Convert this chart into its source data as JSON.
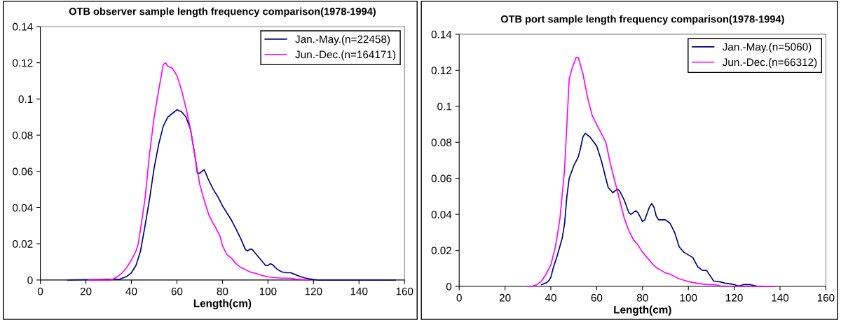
{
  "chart_data": [
    {
      "type": "line",
      "title": "OTB observer sample length frequency comparison(1978-1994)",
      "xlabel": "Length(cm)",
      "xlim": [
        0,
        160
      ],
      "xticks": [
        0,
        20,
        40,
        60,
        80,
        100,
        120,
        140,
        160
      ],
      "ylim": [
        0,
        0.14
      ],
      "yticks": [
        0,
        0.02,
        0.04,
        0.06,
        0.08,
        0.1,
        0.12,
        0.14
      ],
      "grid": false,
      "legend": "top right",
      "marker": "none",
      "line_style": "solid",
      "series": [
        {
          "name": "Jan.-May.(n=22458)",
          "color": "#000080",
          "x": [
            12,
            35,
            38,
            40,
            42,
            44,
            46,
            48,
            50,
            52,
            54,
            56,
            58,
            60,
            62,
            64,
            66,
            68,
            69,
            70,
            72,
            74,
            76,
            78,
            80,
            82,
            84,
            86,
            88,
            90,
            91,
            92,
            93,
            95,
            97,
            99,
            100,
            101,
            102,
            104,
            106,
            108,
            110,
            112,
            114,
            116,
            118,
            120,
            122,
            140,
            156
          ],
          "values": [
            0,
            0.0005,
            0.002,
            0.004,
            0.008,
            0.016,
            0.03,
            0.045,
            0.062,
            0.075,
            0.085,
            0.09,
            0.092,
            0.094,
            0.093,
            0.09,
            0.083,
            0.068,
            0.059,
            0.059,
            0.061,
            0.055,
            0.05,
            0.046,
            0.041,
            0.037,
            0.033,
            0.028,
            0.023,
            0.017,
            0.016,
            0.017,
            0.017,
            0.014,
            0.011,
            0.008,
            0.008,
            0.009,
            0.0085,
            0.006,
            0.0045,
            0.004,
            0.004,
            0.003,
            0.002,
            0.0012,
            0.0007,
            0.0003,
            0,
            0,
            0
          ]
        },
        {
          "name": "Jun.-Dec.(n=164171)",
          "color": "#ff00ff",
          "x": [
            21,
            30,
            32,
            34,
            36,
            38,
            40,
            42,
            43,
            44,
            46,
            48,
            50,
            52,
            54,
            55,
            56,
            58,
            60,
            62,
            64,
            66,
            68,
            70,
            72,
            74,
            76,
            77,
            79,
            80,
            82,
            84,
            86,
            88,
            90,
            92,
            95,
            98,
            100,
            104,
            106,
            110,
            112,
            116,
            118
          ],
          "values": [
            0,
            0,
            0.0005,
            0.002,
            0.004,
            0.007,
            0.011,
            0.016,
            0.02,
            0.028,
            0.045,
            0.07,
            0.09,
            0.105,
            0.119,
            0.12,
            0.118,
            0.117,
            0.113,
            0.105,
            0.095,
            0.083,
            0.068,
            0.053,
            0.044,
            0.036,
            0.031,
            0.029,
            0.024,
            0.019,
            0.014,
            0.012,
            0.009,
            0.007,
            0.0058,
            0.0045,
            0.0035,
            0.0023,
            0.0017,
            0.0012,
            0.001,
            0.001,
            0.0005,
            0.0002,
            0
          ]
        }
      ]
    },
    {
      "type": "line",
      "title": "OTB port sample length frequency comparison(1978-1994)",
      "xlabel": "Length(cm)",
      "xlim": [
        0,
        160
      ],
      "xticks": [
        0,
        20,
        40,
        60,
        80,
        100,
        120,
        140,
        160
      ],
      "ylim": [
        0,
        0.14
      ],
      "yticks": [
        0,
        0.02,
        0.04,
        0.06,
        0.08,
        0.1,
        0.12,
        0.14
      ],
      "grid": false,
      "legend": "top right",
      "marker": "none",
      "line_style": "solid",
      "series": [
        {
          "name": "Jan.-May.(n=5060)",
          "color": "#000080",
          "x": [
            36,
            38,
            39,
            40,
            41,
            43,
            45,
            46,
            47,
            48,
            50,
            52,
            53,
            54,
            55,
            57,
            60,
            62,
            64,
            65,
            67,
            69,
            70,
            72,
            74,
            75,
            76,
            77,
            78,
            80,
            81,
            83,
            84,
            85,
            86,
            87,
            90,
            92,
            94,
            96,
            98,
            102,
            104,
            106,
            108,
            110,
            111,
            114,
            116,
            120,
            122,
            124,
            127,
            130,
            132
          ],
          "values": [
            0.001,
            0.002,
            0.003,
            0.005,
            0.01,
            0.018,
            0.027,
            0.035,
            0.05,
            0.06,
            0.067,
            0.072,
            0.077,
            0.083,
            0.085,
            0.083,
            0.078,
            0.07,
            0.06,
            0.055,
            0.052,
            0.054,
            0.053,
            0.048,
            0.041,
            0.04,
            0.041,
            0.042,
            0.041,
            0.036,
            0.037,
            0.044,
            0.046,
            0.044,
            0.039,
            0.037,
            0.037,
            0.035,
            0.03,
            0.022,
            0.019,
            0.016,
            0.011,
            0.009,
            0.0088,
            0.005,
            0.003,
            0.0025,
            0.0018,
            0.001,
            0.0002,
            0.001,
            0.001,
            0.0001,
            0
          ]
        },
        {
          "name": "Jun.-Dec.(n=66312)",
          "color": "#ff00ff",
          "x": [
            30,
            32,
            34,
            36,
            38,
            40,
            42,
            44,
            46,
            47,
            48,
            49,
            51,
            52,
            54,
            56,
            58,
            60,
            62,
            64,
            66,
            68,
            70,
            72,
            74,
            76,
            78,
            80,
            82,
            84,
            86,
            88,
            90,
            92,
            94,
            96,
            100,
            104,
            108,
            112,
            114,
            118,
            125,
            138
          ],
          "values": [
            0,
            0.0002,
            0.001,
            0.003,
            0.007,
            0.012,
            0.022,
            0.038,
            0.065,
            0.09,
            0.115,
            0.12,
            0.127,
            0.127,
            0.118,
            0.105,
            0.095,
            0.09,
            0.085,
            0.08,
            0.068,
            0.058,
            0.048,
            0.038,
            0.031,
            0.026,
            0.023,
            0.019,
            0.016,
            0.013,
            0.0105,
            0.009,
            0.0075,
            0.0068,
            0.0055,
            0.0042,
            0.0027,
            0.0017,
            0.001,
            0.0009,
            0.0003,
            0.0001,
            0,
            0
          ]
        }
      ]
    }
  ]
}
